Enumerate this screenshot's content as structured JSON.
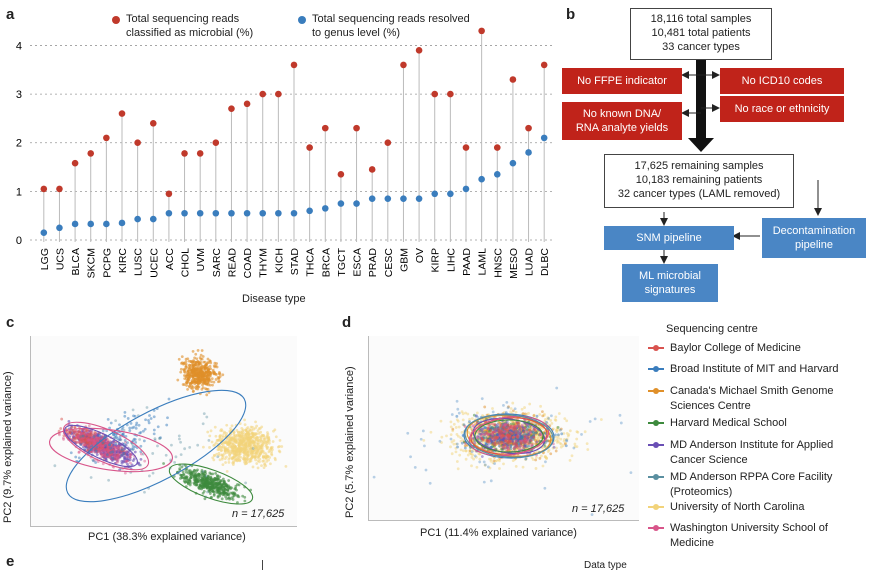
{
  "panels": {
    "a": "a",
    "b": "b",
    "c": "c",
    "d": "d",
    "e": "e"
  },
  "panel_a": {
    "legend": {
      "microbial": "Total sequencing reads classified as microbial (%)",
      "genus": "Total sequencing reads resolved to genus level (%)"
    },
    "xlabel": "Disease type",
    "colors": {
      "microbial": "#c0392b",
      "genus": "#3a7dbd"
    }
  },
  "chart_data": {
    "type": "scatter",
    "title": "",
    "xlabel": "Disease type",
    "ylabel": "",
    "ylim": [
      0,
      4.4
    ],
    "yticks": [
      0,
      1,
      2,
      3,
      4
    ],
    "categories": [
      "LGG",
      "UCS",
      "BLCA",
      "SKCM",
      "PCPG",
      "KIRC",
      "LUSC",
      "UCEC",
      "ACC",
      "CHOL",
      "UVM",
      "SARC",
      "READ",
      "COAD",
      "THYM",
      "KICH",
      "STAD",
      "THCA",
      "BRCA",
      "TGCT",
      "ESCA",
      "PRAD",
      "CESC",
      "GBM",
      "OV",
      "KIRP",
      "LIHC",
      "PAAD",
      "LAML",
      "HNSC",
      "MESO",
      "LUAD",
      "DLBC"
    ],
    "series": [
      {
        "name": "Total sequencing reads classified as microbial (%)",
        "values": [
          1.05,
          1.05,
          1.58,
          1.78,
          2.1,
          2.6,
          2.0,
          2.4,
          0.95,
          1.78,
          1.78,
          2.0,
          2.7,
          2.8,
          3.0,
          3.0,
          3.6,
          1.9,
          2.3,
          1.35,
          2.3,
          1.45,
          2.0,
          3.6,
          3.9,
          3.0,
          3.0,
          1.9,
          4.3,
          1.9,
          3.3,
          2.3,
          3.6
        ]
      },
      {
        "name": "Total sequencing reads resolved to genus level (%)",
        "values": [
          0.15,
          0.25,
          0.33,
          0.33,
          0.33,
          0.35,
          0.43,
          0.43,
          0.55,
          0.55,
          0.55,
          0.55,
          0.55,
          0.55,
          0.55,
          0.55,
          0.55,
          0.6,
          0.65,
          0.75,
          0.75,
          0.85,
          0.85,
          0.85,
          0.85,
          0.95,
          0.95,
          1.05,
          1.25,
          1.35,
          1.58,
          1.8,
          2.1
        ]
      }
    ]
  },
  "panel_b": {
    "top_box": [
      "18,116 total samples",
      "10,481 total patients",
      "33 cancer types"
    ],
    "exclusions": {
      "no_ffpe": "No FFPE indicator",
      "no_dna": "No known DNA/ RNA analyte yields",
      "no_icd10": "No ICD10 codes",
      "no_race": "No race or ethnicity"
    },
    "remaining_box": [
      "17,625 remaining samples",
      "10,183 remaining patients",
      "32 cancer types (LAML removed)"
    ],
    "snm": "SNM pipeline",
    "decontam": "Decontamination pipeline",
    "ml": "ML microbial signatures"
  },
  "panel_c": {
    "xlabel": "PC1 (38.3% explained variance)",
    "ylabel": "PC2 (9.7% explained variance)",
    "n_label": "n = 17,625"
  },
  "panel_d": {
    "xlabel": "PC1 (11.4% explained variance)",
    "ylabel": "PC2 (5.7% explained variance)",
    "n_label": "n = 17,625"
  },
  "legend": {
    "title": "Sequencing centre",
    "items": [
      {
        "label": "Baylor College of Medicine",
        "color": "#d9534f"
      },
      {
        "label": "Broad Institute of MIT and Harvard",
        "color": "#3a7dbd"
      },
      {
        "label": "Canada's Michael Smith Genome Sciences Centre",
        "color": "#e0902a"
      },
      {
        "label": "Harvard Medical School",
        "color": "#3d8a3d"
      },
      {
        "label": "MD Anderson Institute for Applied Cancer Science",
        "color": "#6a4fb5"
      },
      {
        "label": "MD Anderson RPPA Core Facility (Proteomics)",
        "color": "#5a8fa0"
      },
      {
        "label": "University of North Carolina",
        "color": "#f2d37a"
      },
      {
        "label": "Washington University School of Medicine",
        "color": "#d8558a"
      }
    ]
  },
  "panel_e": {
    "partial_label": "Data type"
  }
}
